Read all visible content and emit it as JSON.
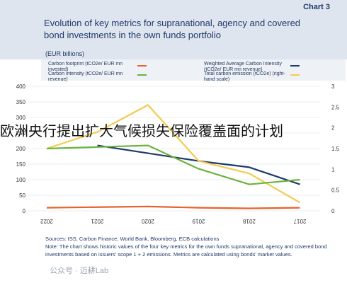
{
  "header": {
    "chart_number": "Chart 3",
    "title": "Evolution of key metrics for supranational, agency and covered bond investments in the own funds portfolio",
    "units": "(EUR billions)"
  },
  "legend": [
    {
      "label": "Weighted Average Carbon Intensity (tCO2e/ EUR mn revenue)",
      "color": "#1f3a6b"
    },
    {
      "label": "Carbon footprint (tCO2e/ EUR mn invested)",
      "color": "#e8622c"
    },
    {
      "label": "Total carbon emission (tCO2e) (right-hand scale)",
      "color": "#f2cb4f"
    },
    {
      "label": "Carbon intensity (tCO2e/ EUR mn revenue)",
      "color": "#6db33f"
    }
  ],
  "overlay_text": "欧洲央行提出扩大气候损失保险覆盖面的计划",
  "notes": {
    "sources": "Sources: ISS, Carbon Finance, World Bank, Bloomberg, ECB calculations",
    "note": "Note: The chart shows historic values of the four key metrics for the own funds supranational, agency and covered bond investments based on issuers' scope 1 + 2 emissions. Metrics are calculated using bonds' market values."
  },
  "watermark": "公众号 · 迈耕Lab",
  "chart_data": {
    "type": "line",
    "categories": [
      "2022",
      "2021",
      "2020",
      "2019",
      "2018",
      "2017"
    ],
    "y_left": {
      "ticks": [
        "400",
        "350",
        "300",
        "250",
        "200",
        "150",
        "100",
        "50",
        "0"
      ],
      "range": [
        0,
        400
      ]
    },
    "y_right": {
      "ticks": [
        "3",
        "2.5",
        "2",
        "1.5",
        "1",
        "0.5",
        "0"
      ],
      "range": [
        0,
        3
      ]
    },
    "series": [
      {
        "name": "Weighted Average Carbon Intensity (tCO2e/ EUR mn revenue)",
        "axis": "left",
        "color": "#1f3a6b",
        "values": [
          null,
          210,
          185,
          160,
          140,
          85
        ]
      },
      {
        "name": "Carbon footprint (tCO2e/ EUR mn invested)",
        "axis": "left",
        "color": "#e8622c",
        "values": [
          10,
          12,
          14,
          10,
          8,
          10
        ]
      },
      {
        "name": "Total carbon emission (tCO2e) (right-hand scale)",
        "axis": "right",
        "color": "#f2cb4f",
        "values": [
          1.5,
          1.9,
          2.55,
          1.2,
          0.9,
          0.2
        ]
      },
      {
        "name": "Carbon intensity (tCO2e/ EUR mn revenue)",
        "axis": "left",
        "color": "#6db33f",
        "values": [
          200,
          205,
          210,
          135,
          85,
          100
        ]
      }
    ]
  }
}
